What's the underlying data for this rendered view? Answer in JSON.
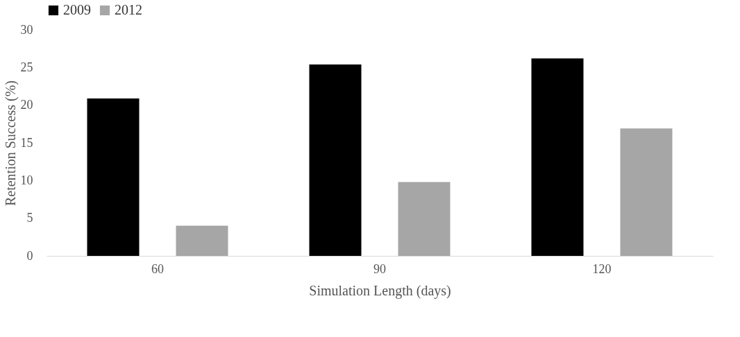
{
  "chart_data": {
    "type": "bar",
    "xlabel": "Simulation Length (days)",
    "ylabel": "Retention Success (%)",
    "categories": [
      "60",
      "90",
      "120"
    ],
    "series": [
      {
        "name": "2009",
        "color": "#000000",
        "values": [
          20.9,
          25.4,
          26.2
        ]
      },
      {
        "name": "2012",
        "color": "#a6a6a6",
        "values": [
          4.0,
          9.8,
          16.9
        ]
      }
    ],
    "ylim": [
      0,
      30
    ],
    "yticks": [
      0,
      5,
      10,
      15,
      20,
      25,
      30
    ],
    "grid": false,
    "legend": "top"
  }
}
